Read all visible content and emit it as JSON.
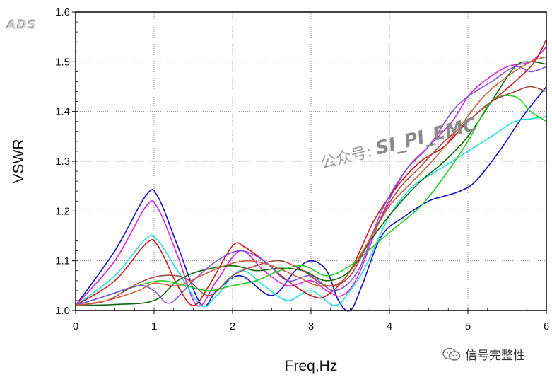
{
  "logo": "ADS",
  "watermark": {
    "prefix": "公众号: ",
    "id": "SI_PI_EMC"
  },
  "account": "信号完整性",
  "chart_data": {
    "type": "line",
    "title": "",
    "xlabel": "Freq,Hz",
    "ylabel": "VSWR",
    "xlim": [
      0,
      6
    ],
    "ylim": [
      1.0,
      1.6
    ],
    "xticks": [
      0,
      1,
      2,
      3,
      4,
      5,
      6
    ],
    "xtick_labels": [
      "0",
      "1",
      "2",
      "3",
      "4",
      "5",
      "6"
    ],
    "yticks": [
      1.0,
      1.1,
      1.2,
      1.3,
      1.4,
      1.5,
      1.6
    ],
    "ytick_labels": [
      "1.0",
      "1.1",
      "1.2",
      "1.3",
      "1.4",
      "1.5",
      "1.6"
    ],
    "grid": true,
    "legend": "none",
    "series": [
      {
        "color": "#1010c8",
        "x": [
          0.0,
          0.5,
          0.9,
          1.05,
          1.3,
          1.6,
          1.8,
          2.1,
          2.5,
          2.8,
          3.0,
          3.2,
          3.35,
          3.5,
          3.65,
          3.9,
          4.2,
          4.5,
          4.7,
          4.9,
          5.1,
          5.4,
          5.7,
          6.0
        ],
        "y": [
          1.01,
          1.12,
          1.232,
          1.228,
          1.13,
          1.012,
          1.04,
          1.07,
          1.03,
          1.08,
          1.1,
          1.08,
          1.02,
          1.0,
          1.05,
          1.15,
          1.19,
          1.22,
          1.23,
          1.24,
          1.26,
          1.32,
          1.39,
          1.45
        ]
      },
      {
        "color": "#e020e0",
        "x": [
          0.0,
          0.5,
          0.9,
          1.05,
          1.3,
          1.55,
          1.8,
          2.1,
          2.4,
          2.7,
          3.0,
          3.2,
          3.4,
          3.6,
          3.9,
          4.2,
          4.5,
          4.8,
          5.0,
          5.2,
          5.5,
          5.8,
          6.0
        ],
        "y": [
          1.01,
          1.1,
          1.21,
          1.205,
          1.11,
          1.01,
          1.06,
          1.12,
          1.08,
          1.05,
          1.06,
          1.04,
          1.03,
          1.07,
          1.19,
          1.28,
          1.33,
          1.38,
          1.43,
          1.46,
          1.49,
          1.5,
          1.53
        ]
      },
      {
        "color": "#20e0e0",
        "x": [
          0.0,
          0.5,
          0.9,
          1.05,
          1.3,
          1.6,
          1.8,
          2.1,
          2.4,
          2.7,
          3.0,
          3.3,
          3.5,
          3.7,
          4.0,
          4.3,
          4.6,
          4.9,
          5.1,
          5.3,
          5.6,
          5.8,
          6.0
        ],
        "y": [
          1.01,
          1.07,
          1.145,
          1.14,
          1.08,
          1.01,
          1.03,
          1.08,
          1.05,
          1.02,
          1.04,
          1.01,
          1.04,
          1.09,
          1.19,
          1.25,
          1.28,
          1.31,
          1.33,
          1.35,
          1.38,
          1.385,
          1.39
        ]
      },
      {
        "color": "#d01818",
        "x": [
          0.0,
          0.5,
          0.9,
          1.05,
          1.3,
          1.5,
          1.7,
          2.0,
          2.15,
          2.4,
          2.7,
          3.0,
          3.2,
          3.5,
          3.8,
          4.1,
          4.4,
          4.7,
          5.0,
          5.3,
          5.6,
          5.85,
          6.0
        ],
        "y": [
          1.01,
          1.06,
          1.135,
          1.13,
          1.05,
          1.01,
          1.05,
          1.13,
          1.128,
          1.1,
          1.06,
          1.03,
          1.03,
          1.08,
          1.18,
          1.25,
          1.3,
          1.33,
          1.38,
          1.42,
          1.46,
          1.5,
          1.545
        ]
      },
      {
        "color": "#0a6a0a",
        "x": [
          0.0,
          0.5,
          1.0,
          1.3,
          1.6,
          2.0,
          2.3,
          2.6,
          2.9,
          3.2,
          3.5,
          3.8,
          4.1,
          4.4,
          4.7,
          5.0,
          5.3,
          5.6,
          5.8,
          6.0
        ],
        "y": [
          1.01,
          1.012,
          1.02,
          1.06,
          1.08,
          1.09,
          1.08,
          1.085,
          1.08,
          1.06,
          1.08,
          1.15,
          1.21,
          1.26,
          1.3,
          1.35,
          1.42,
          1.49,
          1.5,
          1.495
        ]
      },
      {
        "color": "#20d020",
        "x": [
          0.0,
          0.4,
          0.8,
          1.1,
          1.4,
          1.7,
          2.0,
          2.3,
          2.6,
          2.9,
          3.2,
          3.5,
          3.8,
          4.1,
          4.4,
          4.7,
          5.0,
          5.3,
          5.6,
          5.8,
          6.0
        ],
        "y": [
          1.01,
          1.03,
          1.05,
          1.06,
          1.05,
          1.04,
          1.05,
          1.06,
          1.08,
          1.09,
          1.07,
          1.09,
          1.13,
          1.17,
          1.21,
          1.27,
          1.34,
          1.42,
          1.43,
          1.4,
          1.38
        ]
      },
      {
        "color": "#8050e0",
        "x": [
          0.0,
          0.4,
          0.8,
          1.0,
          1.2,
          1.5,
          1.8,
          2.1,
          2.4,
          2.7,
          3.0,
          3.3,
          3.6,
          3.9,
          4.2,
          4.5,
          4.8,
          5.0,
          5.3,
          5.6,
          5.8,
          6.0
        ],
        "y": [
          1.01,
          1.03,
          1.05,
          1.04,
          1.015,
          1.06,
          1.1,
          1.12,
          1.1,
          1.06,
          1.07,
          1.04,
          1.08,
          1.2,
          1.28,
          1.33,
          1.4,
          1.43,
          1.46,
          1.49,
          1.48,
          1.49
        ]
      },
      {
        "color": "#a84848",
        "x": [
          0.0,
          0.4,
          0.8,
          1.1,
          1.4,
          1.7,
          2.0,
          2.3,
          2.6,
          2.9,
          3.2,
          3.5,
          3.8,
          4.1,
          4.4,
          4.7,
          5.0,
          5.3,
          5.6,
          5.8,
          6.0
        ],
        "y": [
          1.01,
          1.02,
          1.055,
          1.07,
          1.065,
          1.03,
          1.07,
          1.09,
          1.1,
          1.08,
          1.05,
          1.07,
          1.16,
          1.24,
          1.29,
          1.34,
          1.38,
          1.42,
          1.44,
          1.45,
          1.44
        ]
      },
      {
        "color": "#c86040",
        "x": [
          0.0,
          0.4,
          0.8,
          1.0,
          1.3,
          1.6,
          1.9,
          2.2,
          2.5,
          2.8,
          3.1,
          3.4,
          3.7,
          4.0,
          4.3,
          4.6,
          4.9,
          5.2,
          5.5,
          5.8,
          6.0
        ],
        "y": [
          1.01,
          1.02,
          1.04,
          1.055,
          1.05,
          1.07,
          1.09,
          1.1,
          1.09,
          1.07,
          1.05,
          1.06,
          1.13,
          1.21,
          1.26,
          1.31,
          1.37,
          1.43,
          1.47,
          1.5,
          1.51
        ]
      }
    ]
  }
}
